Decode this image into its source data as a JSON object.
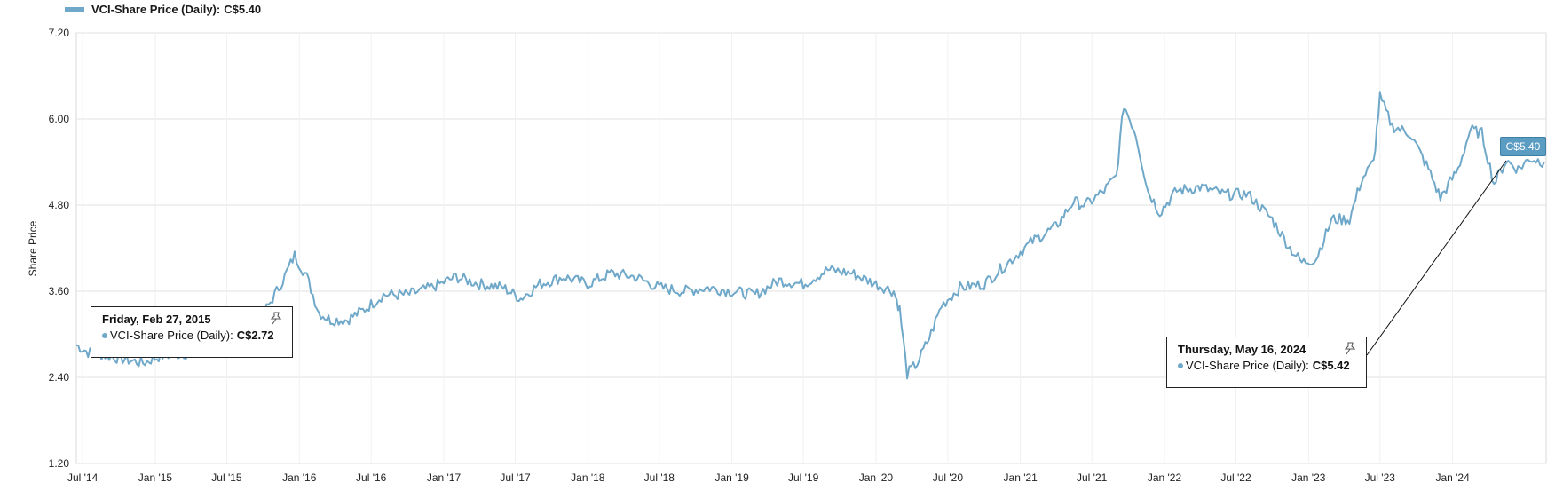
{
  "legend": {
    "series_label": "VCI-Share Price (Daily):",
    "current_value": "C$5.40",
    "color": "#6fa8c9"
  },
  "price_callout": "C$5.40",
  "tooltips": [
    {
      "date": "Friday, Feb 27, 2015",
      "series_label": "VCI-Share Price (Daily):",
      "value": "C$2.72",
      "pin_icon": "pin-icon"
    },
    {
      "date": "Thursday, May 16, 2024",
      "series_label": "VCI-Share Price (Daily):",
      "value": "C$5.42",
      "pin_icon": "pin-icon"
    }
  ],
  "chart_data": {
    "type": "line",
    "title": "",
    "xlabel": "",
    "ylabel": "Share Price",
    "ylim": [
      1.2,
      7.2
    ],
    "yticks": [
      "7.20",
      "6.00",
      "4.80",
      "3.60",
      "2.40",
      "1.20"
    ],
    "xlim": [
      "2014-06-15",
      "2024-08-25"
    ],
    "xticks": [
      {
        "label": "Jul '14",
        "date": "2014-07-01"
      },
      {
        "label": "Jan '15",
        "date": "2015-01-01"
      },
      {
        "label": "Jul '15",
        "date": "2015-07-01"
      },
      {
        "label": "Jan '16",
        "date": "2016-01-01"
      },
      {
        "label": "Jul '16",
        "date": "2016-07-01"
      },
      {
        "label": "Jan '17",
        "date": "2017-01-01"
      },
      {
        "label": "Jul '17",
        "date": "2017-07-01"
      },
      {
        "label": "Jan '18",
        "date": "2018-01-01"
      },
      {
        "label": "Jul '18",
        "date": "2018-07-01"
      },
      {
        "label": "Jan '19",
        "date": "2019-01-01"
      },
      {
        "label": "Jul '19",
        "date": "2019-07-01"
      },
      {
        "label": "Jan '20",
        "date": "2020-01-01"
      },
      {
        "label": "Jul '20",
        "date": "2020-07-01"
      },
      {
        "label": "Jan '21",
        "date": "2021-01-01"
      },
      {
        "label": "Jul '21",
        "date": "2021-07-01"
      },
      {
        "label": "Jan '22",
        "date": "2022-01-01"
      },
      {
        "label": "Jul '22",
        "date": "2022-07-01"
      },
      {
        "label": "Jan '23",
        "date": "2023-01-01"
      },
      {
        "label": "Jul '23",
        "date": "2023-07-01"
      },
      {
        "label": "Jan '24",
        "date": "2024-01-01"
      }
    ],
    "grid": true,
    "series": [
      {
        "name": "VCI-Share Price (Daily)",
        "color": "#6fa8c9",
        "points": [
          [
            "2014-06-15",
            2.85
          ],
          [
            "2014-07-15",
            2.75
          ],
          [
            "2014-09-01",
            2.7
          ],
          [
            "2014-10-15",
            2.65
          ],
          [
            "2014-12-01",
            2.6
          ],
          [
            "2015-01-15",
            2.7
          ],
          [
            "2015-02-27",
            2.72
          ],
          [
            "2015-04-15",
            2.75
          ],
          [
            "2015-06-01",
            2.75
          ],
          [
            "2015-07-15",
            2.85
          ],
          [
            "2015-09-01",
            3.05
          ],
          [
            "2015-10-15",
            3.4
          ],
          [
            "2015-11-20",
            3.75
          ],
          [
            "2015-12-20",
            4.1
          ],
          [
            "2016-01-20",
            3.8
          ],
          [
            "2016-02-20",
            3.3
          ],
          [
            "2016-03-20",
            3.2
          ],
          [
            "2016-05-01",
            3.2
          ],
          [
            "2016-06-15",
            3.35
          ],
          [
            "2016-08-01",
            3.55
          ],
          [
            "2016-10-01",
            3.55
          ],
          [
            "2016-12-01",
            3.65
          ],
          [
            "2017-02-01",
            3.8
          ],
          [
            "2017-04-01",
            3.7
          ],
          [
            "2017-06-01",
            3.65
          ],
          [
            "2017-07-15",
            3.5
          ],
          [
            "2017-09-01",
            3.7
          ],
          [
            "2017-11-01",
            3.8
          ],
          [
            "2018-01-01",
            3.7
          ],
          [
            "2018-03-01",
            3.85
          ],
          [
            "2018-05-01",
            3.8
          ],
          [
            "2018-07-01",
            3.65
          ],
          [
            "2018-09-01",
            3.6
          ],
          [
            "2018-11-01",
            3.65
          ],
          [
            "2019-01-01",
            3.6
          ],
          [
            "2019-03-01",
            3.55
          ],
          [
            "2019-05-01",
            3.75
          ],
          [
            "2019-07-01",
            3.7
          ],
          [
            "2019-09-01",
            3.9
          ],
          [
            "2019-11-01",
            3.85
          ],
          [
            "2020-01-01",
            3.7
          ],
          [
            "2020-02-15",
            3.6
          ],
          [
            "2020-03-01",
            3.35
          ],
          [
            "2020-03-20",
            2.45
          ],
          [
            "2020-04-15",
            2.6
          ],
          [
            "2020-05-15",
            2.95
          ],
          [
            "2020-06-15",
            3.4
          ],
          [
            "2020-08-01",
            3.65
          ],
          [
            "2020-10-01",
            3.7
          ],
          [
            "2020-12-01",
            4.0
          ],
          [
            "2021-02-01",
            4.3
          ],
          [
            "2021-04-01",
            4.5
          ],
          [
            "2021-05-15",
            4.85
          ],
          [
            "2021-06-15",
            4.8
          ],
          [
            "2021-08-01",
            5.0
          ],
          [
            "2021-09-01",
            5.2
          ],
          [
            "2021-09-20",
            6.2
          ],
          [
            "2021-10-20",
            5.8
          ],
          [
            "2021-11-20",
            5.0
          ],
          [
            "2021-12-20",
            4.7
          ],
          [
            "2022-02-01",
            5.0
          ],
          [
            "2022-04-01",
            5.05
          ],
          [
            "2022-06-01",
            4.95
          ],
          [
            "2022-08-01",
            4.95
          ],
          [
            "2022-10-01",
            4.6
          ],
          [
            "2022-11-15",
            4.2
          ],
          [
            "2022-12-15",
            4.0
          ],
          [
            "2023-01-20",
            4.05
          ],
          [
            "2023-03-01",
            4.6
          ],
          [
            "2023-04-15",
            4.6
          ],
          [
            "2023-05-15",
            5.15
          ],
          [
            "2023-06-15",
            5.4
          ],
          [
            "2023-07-01",
            6.3
          ],
          [
            "2023-08-01",
            5.9
          ],
          [
            "2023-09-15",
            5.8
          ],
          [
            "2023-11-01",
            5.3
          ],
          [
            "2023-12-01",
            4.9
          ],
          [
            "2024-01-15",
            5.3
          ],
          [
            "2024-02-15",
            5.85
          ],
          [
            "2024-03-15",
            5.8
          ],
          [
            "2024-04-15",
            5.1
          ],
          [
            "2024-05-16",
            5.42
          ],
          [
            "2024-06-15",
            5.3
          ],
          [
            "2024-07-15",
            5.45
          ],
          [
            "2024-08-20",
            5.4
          ]
        ]
      }
    ],
    "annotations": [
      {
        "date": "2015-02-27",
        "value": 2.72,
        "label": "C$2.72"
      },
      {
        "date": "2024-05-16",
        "value": 5.42,
        "label": "C$5.42"
      }
    ]
  }
}
